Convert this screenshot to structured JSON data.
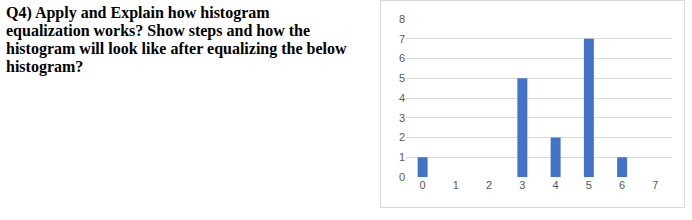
{
  "question": {
    "lines": [
      "Q4) Apply and Explain how histogram",
      "equalization works? Show steps and how the",
      "histogram will look like after equalizing the below",
      "histogram?"
    ]
  },
  "chart_data": {
    "type": "bar",
    "categories": [
      "0",
      "1",
      "2",
      "3",
      "4",
      "5",
      "6",
      "7"
    ],
    "values": [
      1,
      0,
      0,
      5,
      2,
      7,
      1,
      0
    ],
    "color": "#4472c4",
    "ylim": [
      0,
      8
    ],
    "yticks": [
      0,
      1,
      2,
      3,
      4,
      5,
      6,
      7,
      8
    ],
    "grid": true
  }
}
